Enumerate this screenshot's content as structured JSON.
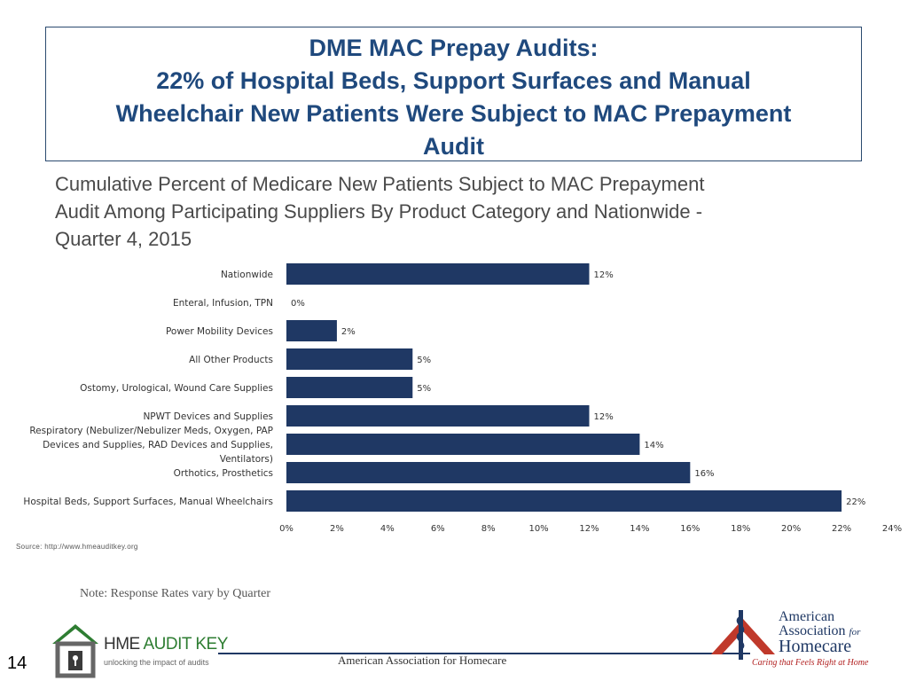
{
  "header": {
    "title_lines": [
      "DME MAC Prepay Audits:",
      "22% of Hospital Beds, Support Surfaces and Manual",
      "Wheelchair New Patients Were Subject to MAC Prepayment",
      "Audit"
    ]
  },
  "subtitle_lines": [
    "Cumulative Percent of Medicare New Patients Subject to MAC Prepayment",
    "Audit  Among Participating Suppliers By Product Category and Nationwide -",
    "Quarter 4, 2015"
  ],
  "chart_data": {
    "type": "bar",
    "orientation": "horizontal",
    "categories": [
      [
        "Nationwide"
      ],
      [
        "Enteral, Infusion, TPN"
      ],
      [
        "Power Mobility Devices"
      ],
      [
        "All Other Products"
      ],
      [
        "Ostomy, Urological, Wound Care Supplies"
      ],
      [
        "NPWT Devices and Supplies"
      ],
      [
        "Respiratory (Nebulizer/Nebulizer Meds, Oxygen, PAP",
        "Devices and Supplies, RAD Devices and Supplies,",
        "Ventilators)"
      ],
      [
        "Orthotics, Prosthetics"
      ],
      [
        "Hospital Beds, Support Surfaces, Manual Wheelchairs"
      ]
    ],
    "values": [
      12,
      0,
      2,
      5,
      5,
      12,
      14,
      16,
      22
    ],
    "value_labels": [
      "12%",
      "0%",
      "2%",
      "5%",
      "5%",
      "12%",
      "14%",
      "16%",
      "22%"
    ],
    "xlim": [
      0,
      24
    ],
    "x_ticks": [
      "0%",
      "2%",
      "4%",
      "6%",
      "8%",
      "10%",
      "12%",
      "14%",
      "16%",
      "18%",
      "20%",
      "22%",
      "24%"
    ],
    "bar_color": "#1f3864",
    "grid": false
  },
  "source_text": "Source: http://www.hmeauditkey.org",
  "note_text": "Note: Response Rates vary by Quarter",
  "footer": {
    "text": "American Association for Homecare",
    "slide_number": "14"
  },
  "logos": {
    "hme": {
      "name_part1": "HME ",
      "name_part2": "AUDIT KEY",
      "tagline": "unlocking the impact of audits"
    },
    "aah": {
      "line1": "American",
      "line2": "Association ",
      "line2_for": "for",
      "line3": "Homecare",
      "tagline": "Caring that Feels Right at Home"
    }
  }
}
